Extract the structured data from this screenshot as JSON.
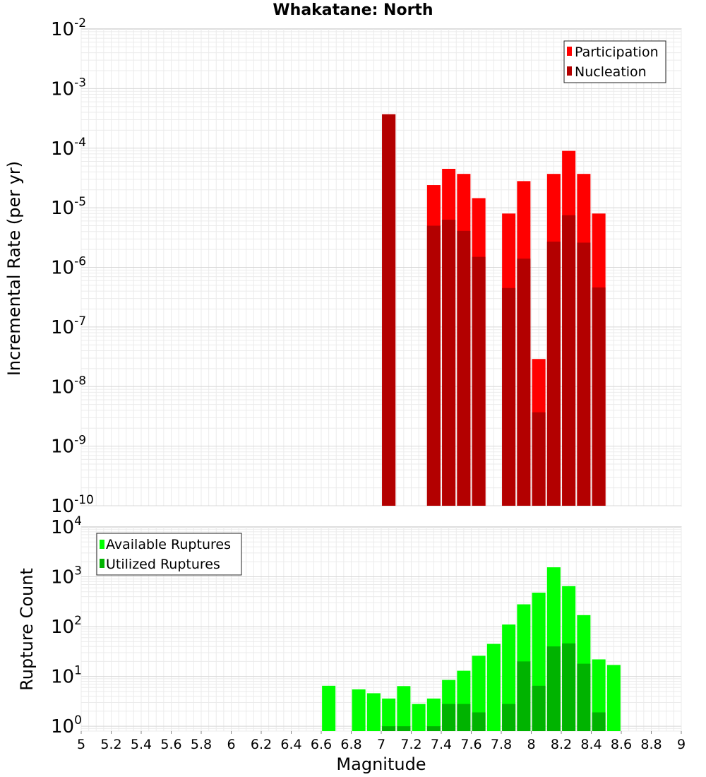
{
  "chart_data": [
    {
      "type": "bar",
      "title": "Whakatane: North",
      "xlabel": "",
      "ylabel": "Incremental Rate (per yr)",
      "yscale": "log",
      "ylim": [
        1e-10,
        0.01
      ],
      "xlim": [
        5,
        9
      ],
      "grid": true,
      "legend": "top-right",
      "yticks": [
        {
          "base": "10",
          "exp": "-10"
        },
        {
          "base": "10",
          "exp": "-9"
        },
        {
          "base": "10",
          "exp": "-8"
        },
        {
          "base": "10",
          "exp": "-7"
        },
        {
          "base": "10",
          "exp": "-6"
        },
        {
          "base": "10",
          "exp": "-5"
        },
        {
          "base": "10",
          "exp": "-4"
        },
        {
          "base": "10",
          "exp": "-3"
        },
        {
          "base": "10",
          "exp": "-2"
        }
      ],
      "series": [
        {
          "name": "Participation",
          "color": "#ff0000",
          "x": [
            7.05,
            7.35,
            7.45,
            7.55,
            7.65,
            7.85,
            7.95,
            8.05,
            8.15,
            8.25,
            8.35,
            8.45
          ],
          "values": [
            0.00037,
            2.4e-05,
            4.5e-05,
            3.7e-05,
            1.45e-05,
            8e-06,
            2.8e-05,
            2.9e-08,
            3.7e-05,
            9e-05,
            3.7e-05,
            8e-06
          ]
        },
        {
          "name": "Nucleation",
          "color": "#b30000",
          "x": [
            7.05,
            7.35,
            7.45,
            7.55,
            7.65,
            7.85,
            7.95,
            8.05,
            8.15,
            8.25,
            8.35,
            8.45
          ],
          "values": [
            0.00037,
            5e-06,
            6.3e-06,
            4.1e-06,
            1.5e-06,
            4.5e-07,
            1.4e-06,
            3.7e-09,
            2.7e-06,
            7.5e-06,
            2.6e-06,
            4.6e-07
          ]
        }
      ]
    },
    {
      "type": "bar",
      "title": "",
      "xlabel": "Magnitude",
      "ylabel": "Rupture Count",
      "yscale": "log",
      "ylim": [
        0.8,
        10000
      ],
      "xlim": [
        5,
        9
      ],
      "grid": true,
      "legend": "top-left",
      "xticks": [
        "5",
        "5.2",
        "5.4",
        "5.6",
        "5.8",
        "6",
        "6.2",
        "6.4",
        "6.6",
        "6.8",
        "7",
        "7.2",
        "7.4",
        "7.6",
        "7.8",
        "8",
        "8.2",
        "8.4",
        "8.6",
        "8.8",
        "9"
      ],
      "yticks": [
        {
          "base": "10",
          "exp": "0"
        },
        {
          "base": "10",
          "exp": "1"
        },
        {
          "base": "10",
          "exp": "2"
        },
        {
          "base": "10",
          "exp": "3"
        },
        {
          "base": "10",
          "exp": "4"
        }
      ],
      "series": [
        {
          "name": "Available Ruptures",
          "color": "#00ff00",
          "x": [
            6.65,
            6.85,
            6.95,
            7.05,
            7.15,
            7.25,
            7.35,
            7.45,
            7.55,
            7.65,
            7.75,
            7.85,
            7.95,
            8.05,
            8.15,
            8.25,
            8.35,
            8.45,
            8.55
          ],
          "values": [
            6.5,
            5.5,
            4.6,
            3.6,
            6.4,
            2.8,
            3.6,
            8.5,
            13,
            26,
            45,
            110,
            280,
            480,
            1550,
            650,
            170,
            22,
            17
          ]
        },
        {
          "name": "Utilized Ruptures",
          "color": "#00b300",
          "x": [
            7.05,
            7.15,
            7.35,
            7.45,
            7.55,
            7.65,
            7.85,
            7.95,
            8.05,
            8.15,
            8.25,
            8.35,
            8.45
          ],
          "values": [
            1,
            1,
            1,
            2.8,
            2.8,
            1.9,
            2.8,
            20,
            6.5,
            40,
            46,
            18,
            1.9
          ]
        }
      ]
    }
  ]
}
